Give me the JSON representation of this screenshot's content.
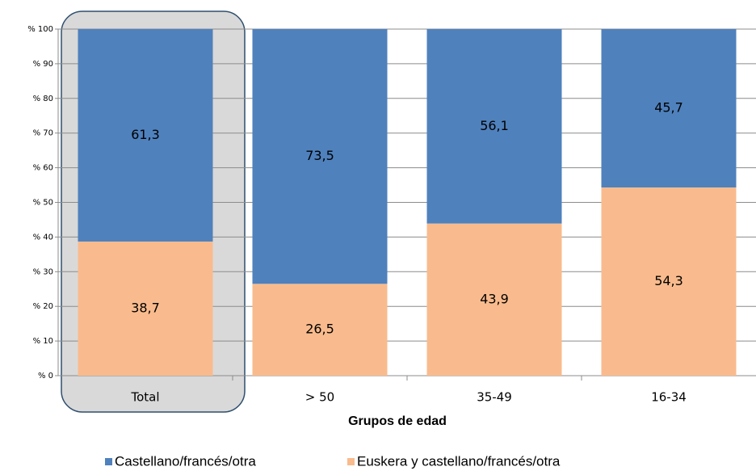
{
  "chart_data": {
    "type": "stacked_bar",
    "categories": [
      "Total",
      "> 50",
      "35-49",
      "16-34"
    ],
    "x_label": "Grupos de edad",
    "series": [
      {
        "name": "Castellano/francés/otra",
        "color": "#4f81bd",
        "values": [
          61.3,
          73.5,
          56.1,
          45.7
        ],
        "value_labels": [
          "61,3",
          "73,5",
          "56,1",
          "45,7"
        ]
      },
      {
        "name": "Euskera y castellano/francés/otra",
        "color": "#f9bb8d",
        "values": [
          38.7,
          26.5,
          43.9,
          54.3
        ],
        "value_labels": [
          "38,7",
          "26,5",
          "43,9",
          "54,3"
        ]
      }
    ],
    "ylim": [
      0,
      100
    ],
    "yticks": [
      {
        "value": 0,
        "label": "% 0"
      },
      {
        "value": 10,
        "label": "% 10"
      },
      {
        "value": 20,
        "label": "% 20"
      },
      {
        "value": 30,
        "label": "% 30"
      },
      {
        "value": 40,
        "label": "% 40"
      },
      {
        "value": 50,
        "label": "% 50"
      },
      {
        "value": 60,
        "label": "% 60"
      },
      {
        "value": 70,
        "label": "% 70"
      },
      {
        "value": 80,
        "label": "% 80"
      },
      {
        "value": 90,
        "label": "% 90"
      },
      {
        "value": 100,
        "label": "% 100"
      }
    ],
    "grid": true,
    "legend": "bottom"
  }
}
